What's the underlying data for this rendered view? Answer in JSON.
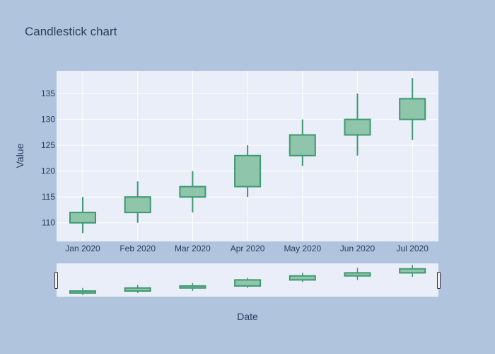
{
  "chart_data": {
    "type": "candlestick",
    "title": "Candlestick chart",
    "xlabel": "Date",
    "ylabel": "Value",
    "categories": [
      "Jan 2020",
      "Feb 2020",
      "Mar 2020",
      "Apr 2020",
      "May 2020",
      "Jun 2020",
      "Jul 2020"
    ],
    "open": [
      110,
      112,
      115,
      117,
      123,
      127,
      130
    ],
    "high": [
      115,
      118,
      120,
      125,
      130,
      135,
      138
    ],
    "low": [
      108,
      110,
      112,
      115,
      121,
      123,
      126
    ],
    "close": [
      112,
      115,
      117,
      123,
      127,
      130,
      134
    ],
    "ylim": [
      106.4,
      139.4
    ],
    "yticks": [
      110,
      115,
      120,
      125,
      130,
      135
    ],
    "colors": {
      "increasing_line": "#3d9970",
      "increasing_fill": "#8fc5ab",
      "plot_bg": "#e9eef8",
      "paper_bg": "#b0c4de",
      "grid": "#ffffff",
      "text": "#2a3f5f"
    },
    "rangeslider": true,
    "grid": true,
    "legend": "none"
  }
}
